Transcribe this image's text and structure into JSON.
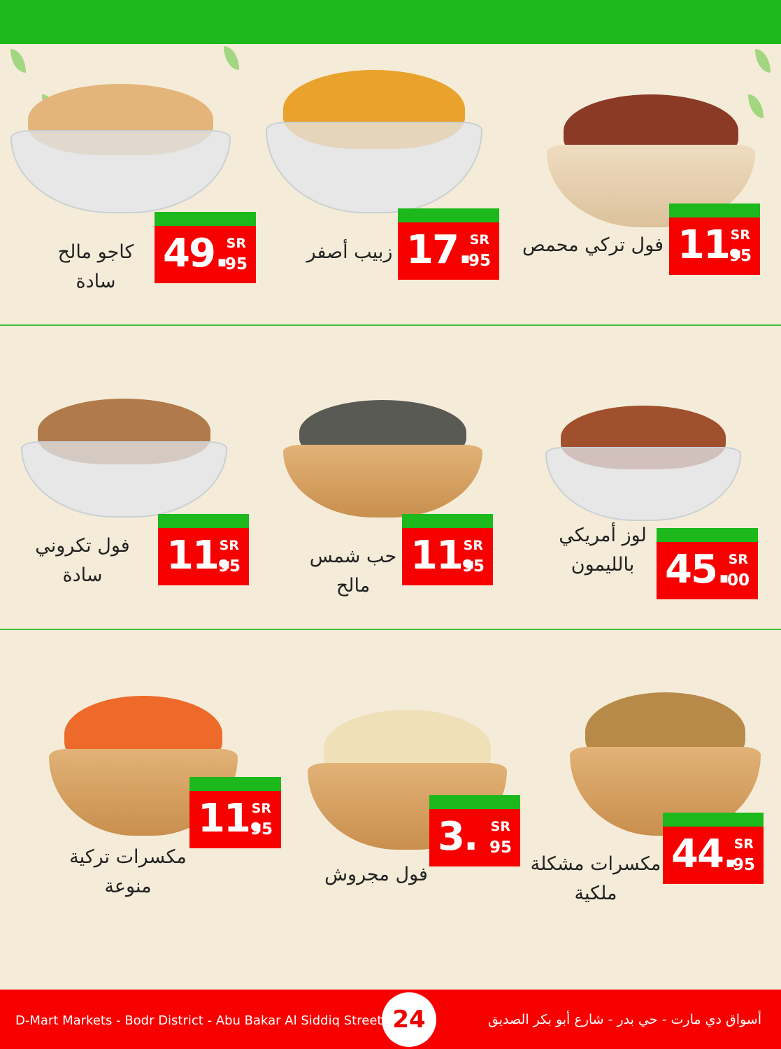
{
  "currency": "SR",
  "products": [
    {
      "name_lines": [
        "كاجو مالح",
        "سادة"
      ],
      "price_int": "49.",
      "price_dec": "95",
      "nut_color": "#e3b57a",
      "dish": "glass"
    },
    {
      "name_lines": [
        "زبيب أصفر"
      ],
      "price_int": "17.",
      "price_dec": "95",
      "nut_color": "#e9a22c",
      "dish": "glass"
    },
    {
      "name_lines": [
        "فول تركي محمص"
      ],
      "price_int": "11.",
      "price_dec": "95",
      "nut_color": "#8a3a25",
      "dish": "lightwood"
    },
    {
      "name_lines": [
        "فول تكروني",
        "سادة"
      ],
      "price_int": "11.",
      "price_dec": "95",
      "nut_color": "#b07a4a",
      "dish": "glass"
    },
    {
      "name_lines": [
        "حب شمس",
        "مالح"
      ],
      "price_int": "11.",
      "price_dec": "95",
      "nut_color": "#5a5a55",
      "dish": "wood"
    },
    {
      "name_lines": [
        "لوز أمريكي",
        "بالليمون"
      ],
      "price_int": "45.",
      "price_dec": "00",
      "nut_color": "#a0502d",
      "dish": "glass"
    },
    {
      "name_lines": [
        "مكسرات تركية",
        "منوعة"
      ],
      "price_int": "11.",
      "price_dec": "95",
      "nut_color": "#ee6a2a",
      "dish": "wood"
    },
    {
      "name_lines": [
        "فول مجروش"
      ],
      "price_int": "3.",
      "price_dec": "95",
      "nut_color": "#efe0b8",
      "dish": "wood"
    },
    {
      "name_lines": [
        "مكسرات مشكلة",
        "ملكية"
      ],
      "price_int": "44.",
      "price_dec": "95",
      "nut_color": "#b88a4a",
      "dish": "wood"
    }
  ],
  "footer": {
    "address_en": "D-Mart Markets - Bodr District - Abu Bakar Al Siddiq Street",
    "address_ar": "أسواق دي مارت - حي بدر - شارع أبو بكر الصديق",
    "page_number": "24"
  },
  "colors": {
    "green": "#1cb81c",
    "red": "#f60000",
    "background": "#f4ecd8"
  }
}
